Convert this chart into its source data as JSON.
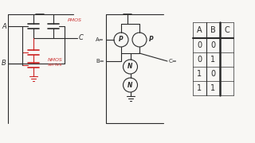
{
  "bg_color": "#f8f7f4",
  "line_color": "#2a2a2a",
  "red_color": "#cc2222",
  "text_color": "#2a2a2a",
  "red_text_color": "#cc3333",
  "table_headers": [
    "A",
    "B",
    "C"
  ],
  "table_rows": [
    [
      "0",
      "0",
      ""
    ],
    [
      "0",
      "1",
      ""
    ],
    [
      "1",
      "0",
      ""
    ],
    [
      "1",
      "1",
      ""
    ]
  ],
  "pmos_label": "PMOS",
  "nmos_label": "NMOS\nseries",
  "p_label": "P",
  "n_label": "N"
}
